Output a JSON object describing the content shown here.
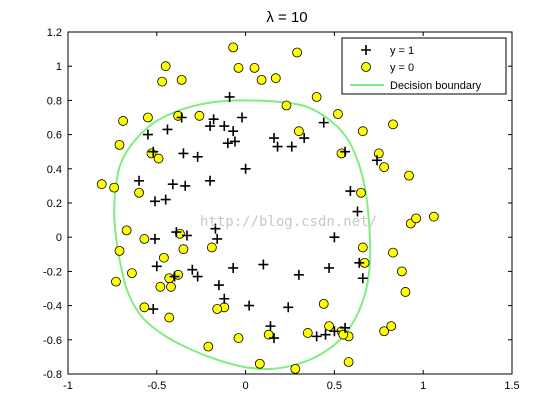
{
  "chart_data": {
    "type": "scatter",
    "title": "λ = 10",
    "xlabel": "",
    "ylabel": "",
    "xlim": [
      -1,
      1.5
    ],
    "ylim": [
      -0.8,
      1.2
    ],
    "x_ticks": [
      -1,
      -0.5,
      0,
      0.5,
      1,
      1.5
    ],
    "x_tick_labels": [
      "-1",
      "-0.5",
      "0",
      "0.5",
      "1",
      "1.5"
    ],
    "y_ticks": [
      -0.8,
      -0.6,
      -0.4,
      -0.2,
      0,
      0.2,
      0.4,
      0.6,
      0.8,
      1,
      1.2
    ],
    "y_tick_labels": [
      "-0.8",
      "-0.6",
      "-0.4",
      "-0.2",
      "0",
      "0.2",
      "0.4",
      "0.6",
      "0.8",
      "1",
      "1.2"
    ],
    "grid": false,
    "legend_position": "top-right",
    "series": [
      {
        "name": "y = 1",
        "marker": "plus",
        "color": "#000000",
        "points": [
          [
            -0.09,
            0.82
          ],
          [
            -0.36,
            0.7
          ],
          [
            -0.18,
            0.69
          ],
          [
            -0.02,
            0.7
          ],
          [
            -0.55,
            0.6
          ],
          [
            -0.44,
            0.63
          ],
          [
            -0.2,
            0.65
          ],
          [
            -0.12,
            0.65
          ],
          [
            -0.07,
            0.62
          ],
          [
            0.16,
            0.58
          ],
          [
            0.18,
            0.53
          ],
          [
            0.26,
            0.53
          ],
          [
            0.33,
            0.58
          ],
          [
            0.44,
            0.67
          ],
          [
            0.56,
            0.5
          ],
          [
            -0.52,
            0.5
          ],
          [
            -0.35,
            0.49
          ],
          [
            -0.27,
            0.47
          ],
          [
            -0.1,
            0.55
          ],
          [
            -0.06,
            0.56
          ],
          [
            0.74,
            0.45
          ],
          [
            -0.6,
            0.33
          ],
          [
            -0.41,
            0.31
          ],
          [
            -0.2,
            0.33
          ],
          [
            0.0,
            0.4
          ],
          [
            -0.51,
            0.21
          ],
          [
            -0.45,
            0.22
          ],
          [
            -0.34,
            0.3
          ],
          [
            0.59,
            0.27
          ],
          [
            0.63,
            0.15
          ],
          [
            -0.39,
            0.03
          ],
          [
            -0.33,
            0.01
          ],
          [
            -0.17,
            0.05
          ],
          [
            0.5,
            0.0
          ],
          [
            -0.51,
            -0.01
          ],
          [
            -0.16,
            -0.01
          ],
          [
            -0.5,
            -0.17
          ],
          [
            -0.3,
            -0.19
          ],
          [
            -0.07,
            -0.18
          ],
          [
            0.1,
            -0.16
          ],
          [
            0.3,
            -0.22
          ],
          [
            0.47,
            -0.18
          ],
          [
            0.64,
            -0.15
          ],
          [
            -0.4,
            -0.23
          ],
          [
            -0.27,
            -0.23
          ],
          [
            0.66,
            -0.24
          ],
          [
            -0.15,
            -0.28
          ],
          [
            -0.12,
            -0.36
          ],
          [
            0.02,
            -0.4
          ],
          [
            0.24,
            -0.41
          ],
          [
            -0.52,
            -0.42
          ],
          [
            0.14,
            -0.52
          ],
          [
            0.56,
            -0.53
          ],
          [
            0.5,
            -0.55
          ],
          [
            0.16,
            -0.59
          ],
          [
            0.4,
            -0.58
          ],
          [
            0.45,
            -0.57
          ]
        ]
      },
      {
        "name": "y = 0",
        "marker": "circle",
        "color": "#ffff00",
        "points": [
          [
            -0.07,
            1.11
          ],
          [
            -0.45,
            1.0
          ],
          [
            -0.04,
            0.99
          ],
          [
            0.05,
            0.99
          ],
          [
            0.29,
            1.08
          ],
          [
            -0.47,
            0.91
          ],
          [
            -0.36,
            0.92
          ],
          [
            0.09,
            0.92
          ],
          [
            0.17,
            0.93
          ],
          [
            -0.69,
            0.68
          ],
          [
            -0.55,
            0.7
          ],
          [
            -0.38,
            0.71
          ],
          [
            -0.26,
            0.71
          ],
          [
            0.23,
            0.77
          ],
          [
            0.4,
            0.82
          ],
          [
            0.52,
            0.72
          ],
          [
            0.66,
            0.62
          ],
          [
            0.83,
            0.66
          ],
          [
            0.3,
            0.62
          ],
          [
            -0.71,
            0.54
          ],
          [
            -0.53,
            0.49
          ],
          [
            -0.49,
            0.46
          ],
          [
            0.54,
            0.49
          ],
          [
            0.75,
            0.49
          ],
          [
            0.78,
            0.41
          ],
          [
            -0.81,
            0.31
          ],
          [
            -0.74,
            0.29
          ],
          [
            -0.6,
            0.26
          ],
          [
            0.92,
            0.36
          ],
          [
            0.65,
            0.26
          ],
          [
            0.93,
            0.08
          ],
          [
            0.96,
            0.11
          ],
          [
            1.06,
            0.12
          ],
          [
            -0.67,
            0.04
          ],
          [
            -0.57,
            -0.01
          ],
          [
            -0.37,
            0.02
          ],
          [
            -0.71,
            -0.08
          ],
          [
            -0.35,
            -0.07
          ],
          [
            -0.19,
            -0.06
          ],
          [
            0.66,
            -0.06
          ],
          [
            0.83,
            -0.09
          ],
          [
            -0.46,
            -0.12
          ],
          [
            0.67,
            -0.15
          ],
          [
            -0.64,
            -0.21
          ],
          [
            -0.38,
            -0.22
          ],
          [
            -0.43,
            -0.24
          ],
          [
            0.88,
            -0.2
          ],
          [
            0.9,
            -0.32
          ],
          [
            -0.73,
            -0.26
          ],
          [
            -0.48,
            -0.29
          ],
          [
            -0.42,
            -0.29
          ],
          [
            -0.12,
            -0.41
          ],
          [
            0.44,
            -0.39
          ],
          [
            -0.57,
            -0.41
          ],
          [
            -0.16,
            -0.42
          ],
          [
            -0.43,
            -0.47
          ],
          [
            0.47,
            -0.52
          ],
          [
            0.54,
            -0.55
          ],
          [
            0.58,
            -0.58
          ],
          [
            0.55,
            -0.57
          ],
          [
            0.78,
            -0.55
          ],
          [
            0.82,
            -0.52
          ],
          [
            0.13,
            -0.57
          ],
          [
            0.35,
            -0.56
          ],
          [
            -0.21,
            -0.64
          ],
          [
            -0.04,
            -0.59
          ],
          [
            0.08,
            -0.74
          ],
          [
            0.28,
            -0.77
          ],
          [
            0.58,
            -0.73
          ]
        ]
      },
      {
        "name": "Decision boundary",
        "type": "line",
        "color": "#80ee80",
        "points": [
          [
            0.0,
            0.8
          ],
          [
            0.2,
            0.79
          ],
          [
            0.35,
            0.76
          ],
          [
            0.48,
            0.68
          ],
          [
            0.57,
            0.58
          ],
          [
            0.63,
            0.45
          ],
          [
            0.67,
            0.3
          ],
          [
            0.69,
            0.15
          ],
          [
            0.7,
            0.0
          ],
          [
            0.7,
            -0.15
          ],
          [
            0.68,
            -0.3
          ],
          [
            0.63,
            -0.45
          ],
          [
            0.55,
            -0.58
          ],
          [
            0.43,
            -0.68
          ],
          [
            0.3,
            -0.74
          ],
          [
            0.15,
            -0.77
          ],
          [
            0.0,
            -0.76
          ],
          [
            -0.15,
            -0.72
          ],
          [
            -0.3,
            -0.66
          ],
          [
            -0.45,
            -0.58
          ],
          [
            -0.58,
            -0.47
          ],
          [
            -0.66,
            -0.33
          ],
          [
            -0.7,
            -0.18
          ],
          [
            -0.73,
            0.0
          ],
          [
            -0.74,
            0.15
          ],
          [
            -0.73,
            0.3
          ],
          [
            -0.7,
            0.44
          ],
          [
            -0.62,
            0.57
          ],
          [
            -0.5,
            0.68
          ],
          [
            -0.35,
            0.75
          ],
          [
            -0.18,
            0.79
          ],
          [
            0.0,
            0.8
          ]
        ]
      }
    ]
  },
  "watermark": "http://blog.csdn.net/"
}
